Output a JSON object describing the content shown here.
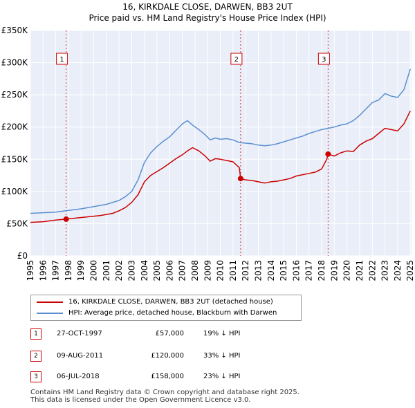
{
  "title_line1": "16, KIRKDALE CLOSE, DARWEN, BB3 2UT",
  "title_line2": "Price paid vs. HM Land Registry's House Price Index (HPI)",
  "chart_data": {
    "type": "line",
    "title": "16, KIRKDALE CLOSE, DARWEN, BB3 2UT — Price paid vs. HM Land Registry's House Price Index (HPI)",
    "xlabel": "",
    "ylabel": "",
    "xlim": [
      1995,
      2025.1
    ],
    "ylim": [
      0,
      350000
    ],
    "x_ticks": [
      "1995",
      "1996",
      "1997",
      "1998",
      "1999",
      "2000",
      "2001",
      "2002",
      "2003",
      "2004",
      "2005",
      "2006",
      "2007",
      "2008",
      "2009",
      "2010",
      "2011",
      "2012",
      "2013",
      "2014",
      "2015",
      "2016",
      "2017",
      "2018",
      "2019",
      "2020",
      "2021",
      "2022",
      "2023",
      "2024",
      "2025"
    ],
    "y_ticks": [
      {
        "value": 0,
        "label": "£0"
      },
      {
        "value": 50000,
        "label": "£50K"
      },
      {
        "value": 100000,
        "label": "£100K"
      },
      {
        "value": 150000,
        "label": "£150K"
      },
      {
        "value": 200000,
        "label": "£200K"
      },
      {
        "value": 250000,
        "label": "£250K"
      },
      {
        "value": 300000,
        "label": "£300K"
      },
      {
        "value": 350000,
        "label": "£350K"
      }
    ],
    "grid": true,
    "series": [
      {
        "name": "16, KIRKDALE CLOSE, DARWEN, BB3 2UT (detached house)",
        "color": "#cc0000",
        "x": [
          1995.0,
          1996.0,
          1997.0,
          1997.82,
          1998.5,
          1999.5,
          2000.5,
          2001.5,
          2002.0,
          2002.5,
          2003.0,
          2003.5,
          2004.0,
          2004.5,
          2005.0,
          2005.5,
          2006.0,
          2006.5,
          2007.0,
          2007.4,
          2007.8,
          2008.3,
          2008.8,
          2009.2,
          2009.6,
          2010.0,
          2010.5,
          2011.0,
          2011.5,
          2011.6,
          2012.0,
          2012.5,
          2013.0,
          2013.5,
          2014.0,
          2014.5,
          2015.0,
          2015.5,
          2016.0,
          2016.5,
          2017.0,
          2017.5,
          2018.0,
          2018.4,
          2018.51,
          2019.0,
          2019.5,
          2020.0,
          2020.5,
          2021.0,
          2021.5,
          2022.0,
          2022.5,
          2023.0,
          2023.5,
          2024.0,
          2024.5,
          2025.0
        ],
        "values": [
          52000,
          53000,
          55500,
          57000,
          58500,
          60500,
          62500,
          66000,
          70000,
          75000,
          83000,
          95000,
          115000,
          125000,
          131000,
          137000,
          144000,
          151000,
          157000,
          163000,
          168000,
          163000,
          155000,
          147000,
          151000,
          150000,
          148000,
          146000,
          137000,
          120000,
          118000,
          117000,
          115000,
          113000,
          115000,
          116000,
          118000,
          120000,
          124000,
          126000,
          128000,
          130000,
          135000,
          150000,
          158000,
          155000,
          160000,
          163000,
          162000,
          172000,
          178000,
          182000,
          190000,
          198000,
          196000,
          194000,
          205000,
          225000
        ]
      },
      {
        "name": "HPI: Average price, detached house, Blackburn with Darwen",
        "color": "#5b8fd0",
        "x": [
          1995.0,
          1996.0,
          1997.0,
          1998.0,
          1999.0,
          2000.0,
          2001.0,
          2002.0,
          2002.5,
          2003.0,
          2003.5,
          2004.0,
          2004.5,
          2005.0,
          2005.5,
          2006.0,
          2006.5,
          2007.0,
          2007.4,
          2007.8,
          2008.3,
          2008.8,
          2009.2,
          2009.6,
          2010.0,
          2010.5,
          2011.0,
          2011.5,
          2012.0,
          2012.5,
          2013.0,
          2013.5,
          2014.0,
          2014.5,
          2015.0,
          2015.5,
          2016.0,
          2016.5,
          2017.0,
          2017.5,
          2018.0,
          2018.5,
          2019.0,
          2019.5,
          2020.0,
          2020.5,
          2021.0,
          2021.5,
          2022.0,
          2022.5,
          2023.0,
          2023.5,
          2024.0,
          2024.5,
          2025.0
        ],
        "values": [
          66000,
          67000,
          68000,
          70500,
          73000,
          76500,
          80000,
          86000,
          92000,
          100000,
          118000,
          145000,
          160000,
          170000,
          178000,
          185000,
          195000,
          205000,
          210000,
          203000,
          196000,
          188000,
          180000,
          183000,
          181000,
          182000,
          180000,
          176000,
          175000,
          174000,
          172000,
          171000,
          172000,
          174000,
          177000,
          180000,
          183000,
          186000,
          190000,
          193000,
          196000,
          198000,
          200000,
          203000,
          205000,
          210000,
          218000,
          228000,
          238000,
          242000,
          252000,
          248000,
          246000,
          258000,
          290000
        ]
      }
    ],
    "sales": [
      {
        "label": "1",
        "year": 1997.82,
        "price": 57000
      },
      {
        "label": "2",
        "year": 2011.6,
        "price": 120000
      },
      {
        "label": "3",
        "year": 2018.51,
        "price": 158000
      }
    ]
  },
  "legend": {
    "property": "16, KIRKDALE CLOSE, DARWEN, BB3 2UT (detached house)",
    "hpi": "HPI: Average price, detached house, Blackburn with Darwen"
  },
  "sales_table": [
    {
      "num": "1",
      "date": "27-OCT-1997",
      "price": "£57,000",
      "hpi": "19% ↓ HPI"
    },
    {
      "num": "2",
      "date": "09-AUG-2011",
      "price": "£120,000",
      "hpi": "33% ↓ HPI"
    },
    {
      "num": "3",
      "date": "06-JUL-2018",
      "price": "£158,000",
      "hpi": "23% ↓ HPI"
    }
  ],
  "footer": {
    "line1": "Contains HM Land Registry data © Crown copyright and database right 2025.",
    "line2": "This data is licensed under the Open Government Licence v3.0."
  }
}
